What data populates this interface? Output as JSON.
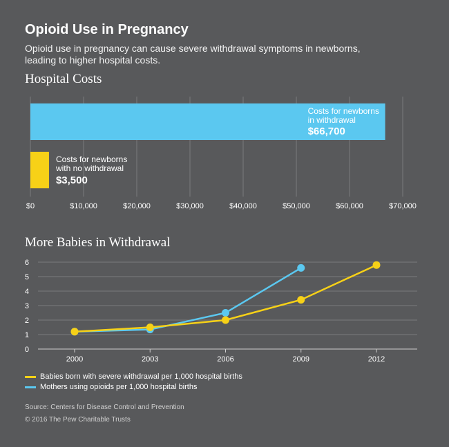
{
  "header": {
    "title": "Opioid Use in Pregnancy",
    "subtitle": "Opioid use in pregnancy can cause severe withdrawal symptoms in newborns, leading to higher hospital costs."
  },
  "colors": {
    "background": "#58595b",
    "blue": "#5bc8f0",
    "yellow": "#f7d117",
    "grid": "#7a7b7d"
  },
  "chart_data": [
    {
      "type": "bar",
      "orientation": "horizontal",
      "title": "Hospital Costs",
      "categories": [
        "Costs for newborns in withdrawal",
        "Costs for newborns with no withdrawal"
      ],
      "category_lines": [
        [
          "Costs for newborns",
          "in withdrawal"
        ],
        [
          "Costs for newborns",
          "with no withdrawal"
        ]
      ],
      "values": [
        66700,
        3500
      ],
      "value_labels": [
        "$66,700",
        "$3,500"
      ],
      "xlim": [
        0,
        70000
      ],
      "xticks": [
        0,
        10000,
        20000,
        30000,
        40000,
        50000,
        60000,
        70000
      ],
      "xtick_labels": [
        "$0",
        "$10,000",
        "$20,000",
        "$30,000",
        "$40,000",
        "$50,000",
        "$60,000",
        "$70,000"
      ],
      "grid": true
    },
    {
      "type": "line",
      "title": "More Babies in Withdrawal",
      "ylim": [
        0,
        6
      ],
      "yticks": [
        "0",
        "1",
        "2",
        "3",
        "4",
        "5",
        "6"
      ],
      "x_labels": [
        "2000",
        "2003",
        "2006",
        "2009",
        "2012"
      ],
      "series": [
        {
          "name": "Babies born with severe withdrawal per 1,000 hospital births",
          "x": [
            2000,
            2003,
            2006,
            2009,
            2012
          ],
          "values": [
            1.2,
            1.5,
            2.0,
            3.4,
            5.8
          ]
        },
        {
          "name": "Mothers using opioids per 1,000 hospital births",
          "x": [
            2000,
            2003,
            2006,
            2009
          ],
          "values": [
            1.2,
            1.35,
            2.5,
            5.6
          ]
        }
      ],
      "grid": true
    }
  ],
  "footer": {
    "source": "Source: Centers for Disease Control and Prevention",
    "copyright": "© 2016 The Pew Charitable Trusts"
  }
}
